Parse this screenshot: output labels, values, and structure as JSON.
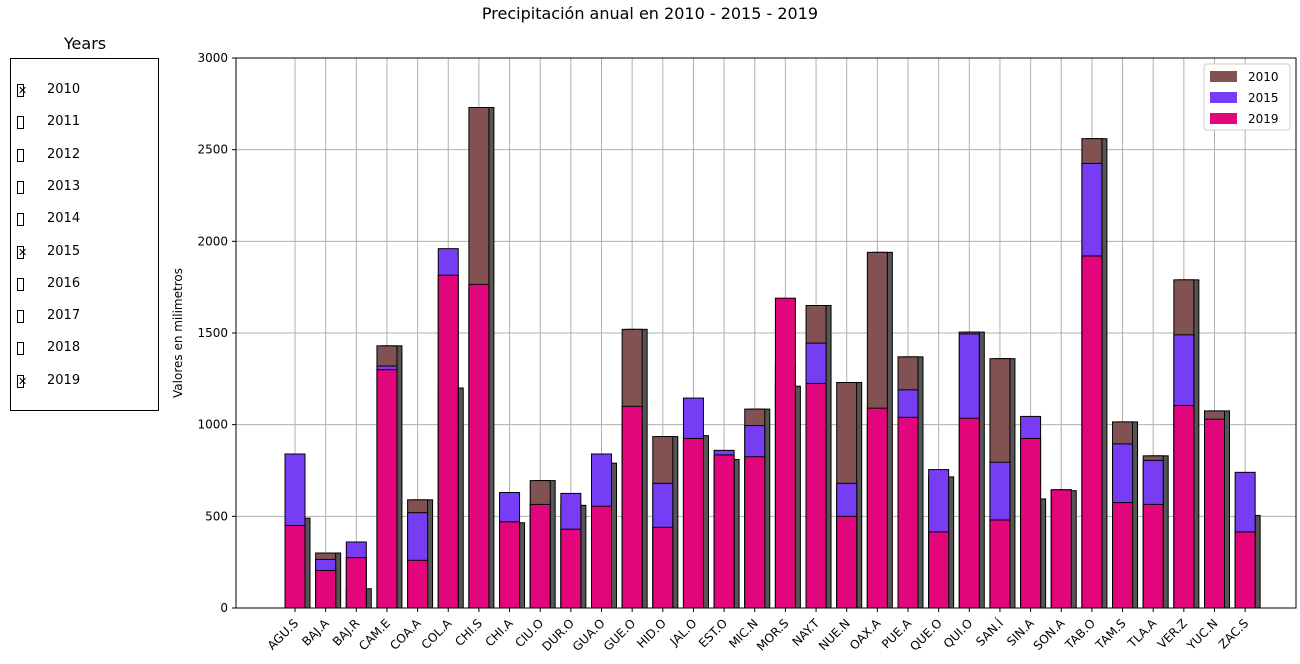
{
  "title": "Precipitación anual en 2010 - 2015 - 2019",
  "selector": {
    "title": "Years",
    "years": [
      {
        "label": "2010",
        "checked": true
      },
      {
        "label": "2011",
        "checked": false
      },
      {
        "label": "2012",
        "checked": false
      },
      {
        "label": "2013",
        "checked": false
      },
      {
        "label": "2014",
        "checked": false
      },
      {
        "label": "2015",
        "checked": true
      },
      {
        "label": "2016",
        "checked": false
      },
      {
        "label": "2017",
        "checked": false
      },
      {
        "label": "2018",
        "checked": false
      },
      {
        "label": "2019",
        "checked": true
      }
    ]
  },
  "colors": {
    "2010": "#825252",
    "2015": "#773df5",
    "2019": "#e2057c",
    "shadow": "#555555"
  },
  "chart_data": {
    "type": "bar",
    "title": "Precipitación anual en 2010 - 2015 - 2019",
    "xlabel": "",
    "ylabel": "Valores en milimetros",
    "ylim": [
      0,
      3000
    ],
    "yticks": [
      0,
      500,
      1000,
      1500,
      2000,
      2500,
      3000
    ],
    "grid": true,
    "legend": "top-right",
    "categories": [
      "AGU.S",
      "BAJ.A",
      "BAJ.R",
      "CAM.E",
      "COA.A",
      "COL.A",
      "CHI.S",
      "CHI.A",
      "CIU.O",
      "DUR.O",
      "GUA.O",
      "GUE.O",
      "HID.O",
      "JAL.O",
      "EST.O",
      "MIC.N",
      "MOR.S",
      "NAY.T",
      "NUE.N",
      "OAX.A",
      "PUE.A",
      "QUE.O",
      "QUI.O",
      "SAN.Í",
      "SIN.A",
      "SON.A",
      "TAB.O",
      "TAM.S",
      "TLA.A",
      "VER.Z",
      "YUC.N",
      "ZAC.S"
    ],
    "series": [
      {
        "name": "2010",
        "values": [
          490,
          300,
          105,
          1430,
          590,
          1200,
          2730,
          465,
          695,
          560,
          790,
          1520,
          935,
          940,
          810,
          1085,
          1210,
          1650,
          1230,
          1940,
          1370,
          715,
          1505,
          1360,
          595,
          640,
          2560,
          1015,
          830,
          1790,
          1075,
          505
        ]
      },
      {
        "name": "2015",
        "values": [
          840,
          265,
          360,
          1320,
          520,
          1960,
          1740,
          630,
          485,
          625,
          840,
          1000,
          680,
          1145,
          860,
          995,
          1330,
          1445,
          680,
          1000,
          1190,
          755,
          1495,
          795,
          1045,
          645,
          2425,
          895,
          805,
          1490,
          975,
          740
        ]
      },
      {
        "name": "2019",
        "values": [
          450,
          205,
          275,
          1300,
          260,
          1815,
          1765,
          470,
          565,
          430,
          555,
          1100,
          440,
          925,
          835,
          825,
          1690,
          1225,
          500,
          1090,
          1040,
          415,
          1035,
          480,
          925,
          645,
          1920,
          575,
          565,
          1105,
          1030,
          415
        ]
      }
    ]
  }
}
